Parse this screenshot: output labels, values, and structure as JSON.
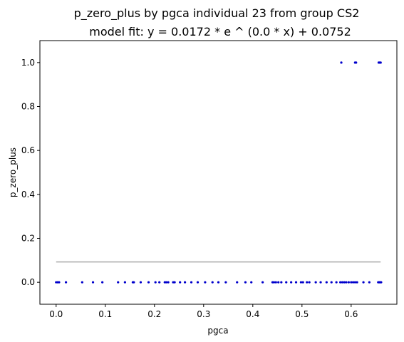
{
  "chart_data": {
    "type": "scatter",
    "title": "p_zero_plus by pgca individual 23 from group CS2",
    "subtitle": "model fit: y = 0.0172 * e ^ (0.0 * x) + 0.0752",
    "xlabel": "pgca",
    "ylabel": "p_zero_plus",
    "xlim": [
      -0.033,
      0.693
    ],
    "ylim": [
      -0.1,
      1.1
    ],
    "x_ticks": [
      "0.0",
      "0.1",
      "0.2",
      "0.3",
      "0.4",
      "0.5",
      "0.6"
    ],
    "x_tick_values": [
      0.0,
      0.1,
      0.2,
      0.3,
      0.4,
      0.5,
      0.6
    ],
    "y_ticks": [
      "0.0",
      "0.2",
      "0.4",
      "0.6",
      "0.8",
      "1.0"
    ],
    "y_tick_values": [
      0.0,
      0.2,
      0.4,
      0.6,
      0.8,
      1.0
    ],
    "grid": false,
    "point_color": "#0000cc",
    "fit_color": "#aaaaaa",
    "points": [
      {
        "x": 0.0,
        "y": 0
      },
      {
        "x": 0.003,
        "y": 0
      },
      {
        "x": 0.006,
        "y": 0
      },
      {
        "x": 0.02,
        "y": 0
      },
      {
        "x": 0.053,
        "y": 0
      },
      {
        "x": 0.075,
        "y": 0
      },
      {
        "x": 0.094,
        "y": 0
      },
      {
        "x": 0.126,
        "y": 0
      },
      {
        "x": 0.14,
        "y": 0
      },
      {
        "x": 0.156,
        "y": 0
      },
      {
        "x": 0.158,
        "y": 0
      },
      {
        "x": 0.172,
        "y": 0
      },
      {
        "x": 0.188,
        "y": 0
      },
      {
        "x": 0.202,
        "y": 0
      },
      {
        "x": 0.21,
        "y": 0
      },
      {
        "x": 0.221,
        "y": 0
      },
      {
        "x": 0.224,
        "y": 0
      },
      {
        "x": 0.228,
        "y": 0
      },
      {
        "x": 0.238,
        "y": 0
      },
      {
        "x": 0.241,
        "y": 0
      },
      {
        "x": 0.252,
        "y": 0
      },
      {
        "x": 0.262,
        "y": 0
      },
      {
        "x": 0.275,
        "y": 0
      },
      {
        "x": 0.288,
        "y": 0
      },
      {
        "x": 0.303,
        "y": 0
      },
      {
        "x": 0.318,
        "y": 0
      },
      {
        "x": 0.33,
        "y": 0
      },
      {
        "x": 0.345,
        "y": 0
      },
      {
        "x": 0.368,
        "y": 0
      },
      {
        "x": 0.385,
        "y": 0
      },
      {
        "x": 0.397,
        "y": 0
      },
      {
        "x": 0.42,
        "y": 0
      },
      {
        "x": 0.44,
        "y": 0
      },
      {
        "x": 0.443,
        "y": 0
      },
      {
        "x": 0.447,
        "y": 0
      },
      {
        "x": 0.452,
        "y": 0
      },
      {
        "x": 0.458,
        "y": 0
      },
      {
        "x": 0.468,
        "y": 0
      },
      {
        "x": 0.478,
        "y": 0
      },
      {
        "x": 0.488,
        "y": 0
      },
      {
        "x": 0.498,
        "y": 0
      },
      {
        "x": 0.502,
        "y": 0
      },
      {
        "x": 0.51,
        "y": 0
      },
      {
        "x": 0.515,
        "y": 0
      },
      {
        "x": 0.528,
        "y": 0
      },
      {
        "x": 0.538,
        "y": 0
      },
      {
        "x": 0.55,
        "y": 0
      },
      {
        "x": 0.56,
        "y": 0
      },
      {
        "x": 0.57,
        "y": 0
      },
      {
        "x": 0.578,
        "y": 0
      },
      {
        "x": 0.582,
        "y": 0
      },
      {
        "x": 0.586,
        "y": 0
      },
      {
        "x": 0.59,
        "y": 0
      },
      {
        "x": 0.595,
        "y": 0
      },
      {
        "x": 0.6,
        "y": 0
      },
      {
        "x": 0.604,
        "y": 0
      },
      {
        "x": 0.608,
        "y": 0
      },
      {
        "x": 0.612,
        "y": 0
      },
      {
        "x": 0.625,
        "y": 0
      },
      {
        "x": 0.637,
        "y": 0
      },
      {
        "x": 0.655,
        "y": 0
      },
      {
        "x": 0.657,
        "y": 0
      },
      {
        "x": 0.659,
        "y": 0
      },
      {
        "x": 0.661,
        "y": 0
      },
      {
        "x": 0.58,
        "y": 1
      },
      {
        "x": 0.608,
        "y": 1
      },
      {
        "x": 0.61,
        "y": 1
      },
      {
        "x": 0.656,
        "y": 1
      },
      {
        "x": 0.658,
        "y": 1
      },
      {
        "x": 0.66,
        "y": 1
      }
    ],
    "fit_line": {
      "x": [
        0.0,
        0.66
      ],
      "y": [
        0.0924,
        0.0924
      ]
    }
  }
}
